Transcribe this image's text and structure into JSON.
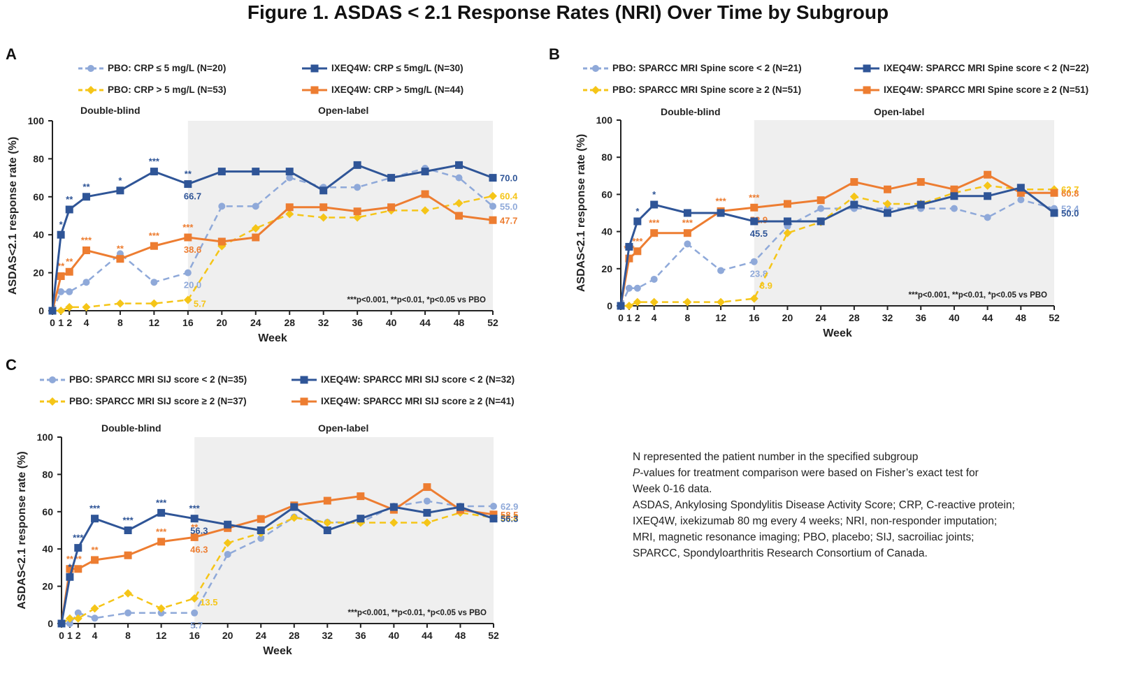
{
  "figure": {
    "title": "Figure 1. ASDAS < 2.1 Response Rates (NRI) Over Time by Subgroup",
    "colors": {
      "pbo_low": "#8fa9d9",
      "pbo_high": "#f5c518",
      "ixe_low": "#2f5597",
      "ixe_high": "#ed7d31",
      "openlabel_bg": "#efefef"
    }
  },
  "chart_data": [
    {
      "panel": "A",
      "type": "line",
      "title": "",
      "xlabel": "Week",
      "ylabel": "ASDAS<2.1  response rate (%)",
      "ylim": [
        0,
        100
      ],
      "yticks": [
        0,
        20,
        40,
        60,
        80,
        100
      ],
      "xticks": [
        0,
        1,
        2,
        4,
        8,
        12,
        16,
        20,
        24,
        28,
        32,
        36,
        40,
        44,
        48,
        52
      ],
      "x": [
        0,
        1,
        2,
        4,
        8,
        12,
        16,
        20,
        24,
        28,
        32,
        36,
        40,
        44,
        48,
        52
      ],
      "phases": [
        {
          "label": "Double-blind",
          "range": [
            0,
            16
          ]
        },
        {
          "label": "Open-label",
          "range": [
            16,
            52
          ]
        }
      ],
      "pvalue_note": "***p<0.001, **p<0.01, *p<0.05 vs PBO",
      "legend_position": "top",
      "series": [
        {
          "name": "PBO: CRP ≤ 5 mg/L (N=20)",
          "key": "pbo_low",
          "style": "dashed",
          "marker": "circle",
          "values": [
            0,
            10,
            10,
            15,
            30,
            15,
            20,
            55,
            55,
            70,
            65,
            65,
            70,
            75,
            70,
            55
          ],
          "end_label": "55.0",
          "wk16_label": "20.0"
        },
        {
          "name": "IXEQ4W: CRP ≤ 5mg/L (N=30)",
          "key": "ixe_low",
          "style": "solid",
          "marker": "square",
          "values": [
            0,
            40,
            53.3,
            60,
            63.3,
            73.3,
            66.7,
            73.3,
            73.3,
            73.3,
            63.3,
            76.7,
            70,
            73.3,
            76.7,
            70
          ],
          "end_label": "70.0",
          "wk16_label": "66.7",
          "sig": {
            "1": "*",
            "2": "**",
            "4": "**",
            "8": "*",
            "12": "***",
            "16": "**"
          }
        },
        {
          "name": "PBO: CRP > 5 mg/L (N=53)",
          "key": "pbo_high",
          "style": "dashed",
          "marker": "diamond",
          "values": [
            0,
            0,
            1.9,
            1.9,
            3.8,
            3.8,
            5.7,
            34,
            43.4,
            50.9,
            49.1,
            49.1,
            52.8,
            52.8,
            56.6,
            60.4
          ],
          "end_label": "60.4",
          "wk16_label": "5.7"
        },
        {
          "name": "IXEQ4W: CRP > 5mg/L (N=44)",
          "key": "ixe_high",
          "style": "solid",
          "marker": "square",
          "values": [
            0,
            18.2,
            20.5,
            31.8,
            27.3,
            34.1,
            38.6,
            36.4,
            38.6,
            54.5,
            54.5,
            52.3,
            54.5,
            61.4,
            50,
            47.7
          ],
          "end_label": "47.7",
          "wk16_label": "38.6",
          "sig": {
            "1": "**",
            "2": "**",
            "4": "***",
            "8": "**",
            "12": "***",
            "16": "***"
          }
        }
      ]
    },
    {
      "panel": "B",
      "type": "line",
      "title": "",
      "xlabel": "Week",
      "ylabel": "ASDAS<2.1  response rate (%)",
      "ylim": [
        0,
        100
      ],
      "yticks": [
        0,
        20,
        40,
        60,
        80,
        100
      ],
      "xticks": [
        0,
        1,
        2,
        4,
        8,
        12,
        16,
        20,
        24,
        28,
        32,
        36,
        40,
        44,
        48,
        52
      ],
      "x": [
        0,
        1,
        2,
        4,
        8,
        12,
        16,
        20,
        24,
        28,
        32,
        36,
        40,
        44,
        48,
        52
      ],
      "phases": [
        {
          "label": "Double-blind",
          "range": [
            0,
            16
          ]
        },
        {
          "label": "Open-label",
          "range": [
            16,
            52
          ]
        }
      ],
      "pvalue_note": "***p<0.001, **p<0.01, *p<0.05 vs PBO",
      "legend_position": "top",
      "series": [
        {
          "name": "PBO: SPARCC MRI Spine score < 2 (N=21)",
          "key": "pbo_low",
          "style": "dashed",
          "marker": "circle",
          "values": [
            0,
            9.5,
            9.5,
            14.3,
            33.3,
            19,
            23.8,
            42.9,
            52.4,
            52.4,
            52.4,
            52.4,
            52.4,
            47.6,
            57.1,
            52.4
          ],
          "end_label": "52.4",
          "wk16_label": "23.8"
        },
        {
          "name": "IXEQ4W: SPARCC MRI Spine score < 2 (N=22)",
          "key": "ixe_low",
          "style": "solid",
          "marker": "square",
          "values": [
            0,
            31.8,
            45.5,
            54.5,
            50,
            50,
            45.5,
            45.5,
            45.5,
            54.5,
            50,
            54.5,
            59.1,
            59.1,
            63.6,
            50
          ],
          "end_label": "50.0",
          "wk16_label": "45.5",
          "sig": {
            "2": "*",
            "4": "*"
          }
        },
        {
          "name": "PBO: SPARCC MRI Spine score ≥ 2 (N=51)",
          "key": "pbo_high",
          "style": "dashed",
          "marker": "diamond",
          "values": [
            0,
            0,
            2,
            2,
            2,
            2,
            3.9,
            39.2,
            45.1,
            58.8,
            54.9,
            54.9,
            60.8,
            64.7,
            62.7,
            62.7
          ],
          "end_label": "62.7",
          "wk16_label": "3.9"
        },
        {
          "name": "IXEQ4W: SPARCC MRI Spine score ≥ 2 (N=51)",
          "key": "ixe_high",
          "style": "solid",
          "marker": "square",
          "values": [
            0,
            25.5,
            29.4,
            39.2,
            39.2,
            51,
            52.9,
            54.9,
            56.9,
            66.7,
            62.7,
            66.7,
            62.7,
            70.6,
            60.8,
            60.8
          ],
          "end_label": "60.8",
          "wk16_label": "52.9",
          "sig": {
            "1": "***",
            "2": "***",
            "4": "***",
            "8": "***",
            "12": "***",
            "16": "***"
          }
        }
      ]
    },
    {
      "panel": "C",
      "type": "line",
      "title": "",
      "xlabel": "Week",
      "ylabel": "ASDAS<2.1  response rate (%)",
      "ylim": [
        0,
        100
      ],
      "yticks": [
        0,
        20,
        40,
        60,
        80,
        100
      ],
      "xticks": [
        0,
        1,
        2,
        4,
        8,
        12,
        16,
        20,
        24,
        28,
        32,
        36,
        40,
        44,
        48,
        52
      ],
      "x": [
        0,
        1,
        2,
        4,
        8,
        12,
        16,
        20,
        24,
        28,
        32,
        36,
        40,
        44,
        48,
        52
      ],
      "phases": [
        {
          "label": "Double-blind",
          "range": [
            0,
            16
          ]
        },
        {
          "label": "Open-label",
          "range": [
            16,
            52
          ]
        }
      ],
      "pvalue_note": "***p<0.001, **p<0.01, *p<0.05 vs PBO",
      "legend_position": "top",
      "series": [
        {
          "name": "PBO: SPARCC MRI SIJ score < 2 (N=35)",
          "key": "pbo_low",
          "style": "dashed",
          "marker": "circle",
          "values": [
            0,
            0,
            5.7,
            2.9,
            5.7,
            5.7,
            5.7,
            37.1,
            45.7,
            57.1,
            54.3,
            54.3,
            62.9,
            65.7,
            62.9,
            62.9
          ],
          "end_label": "62.9",
          "wk16_label": "5.7"
        },
        {
          "name": "IXEQ4W: SPARCC MRI SIJ score < 2 (N=32)",
          "key": "ixe_low",
          "style": "solid",
          "marker": "square",
          "values": [
            0,
            25,
            40.6,
            56.3,
            50,
            59.4,
            56.3,
            53.1,
            50,
            62.5,
            50,
            56.3,
            62.5,
            59.4,
            62.5,
            56.3
          ],
          "end_label": "56.3",
          "wk16_label": "56.3",
          "sig": {
            "1": "*",
            "2": "***",
            "4": "***",
            "8": "***",
            "12": "***",
            "16": "***"
          }
        },
        {
          "name": "PBO: SPARCC MRI SIJ score ≥ 2 (N=37)",
          "key": "pbo_high",
          "style": "dashed",
          "marker": "diamond",
          "values": [
            0,
            2.7,
            2.7,
            8.1,
            16.2,
            8.1,
            13.5,
            43.2,
            48.6,
            56.8,
            54.1,
            54.1,
            54.1,
            54.1,
            59.5,
            56.8
          ],
          "end_label": "56.8",
          "wk16_label": "13.5"
        },
        {
          "name": "IXEQ4W: SPARCC MRI SIJ score ≥ 2 (N=41)",
          "key": "ixe_high",
          "style": "solid",
          "marker": "square",
          "values": [
            0,
            29.3,
            29.3,
            34.1,
            36.6,
            43.9,
            46.3,
            51.2,
            56.1,
            63.4,
            65.9,
            68.3,
            61,
            73.2,
            61,
            58.5
          ],
          "end_label": "58.5",
          "wk16_label": "46.3",
          "sig": {
            "1": "**",
            "2": "**",
            "4": "**",
            "12": "***",
            "16": "**"
          }
        }
      ]
    }
  ],
  "footnote": {
    "lines": [
      "N represented the patient number in the specified subgroup",
      "P-values for treatment comparison were based on Fisher’s exact test for",
      "Week 0-16 data.",
      "ASDAS, Ankylosing Spondylitis Disease Activity Score; CRP, C-reactive protein;",
      "IXEQ4W, ixekizumab 80 mg every 4 weeks; NRI, non-responder imputation;",
      "MRI, magnetic resonance imaging; PBO, placebo; SIJ, sacroiliac joints;",
      "SPARCC, Spondyloarthritis Research Consortium of Canada."
    ]
  }
}
